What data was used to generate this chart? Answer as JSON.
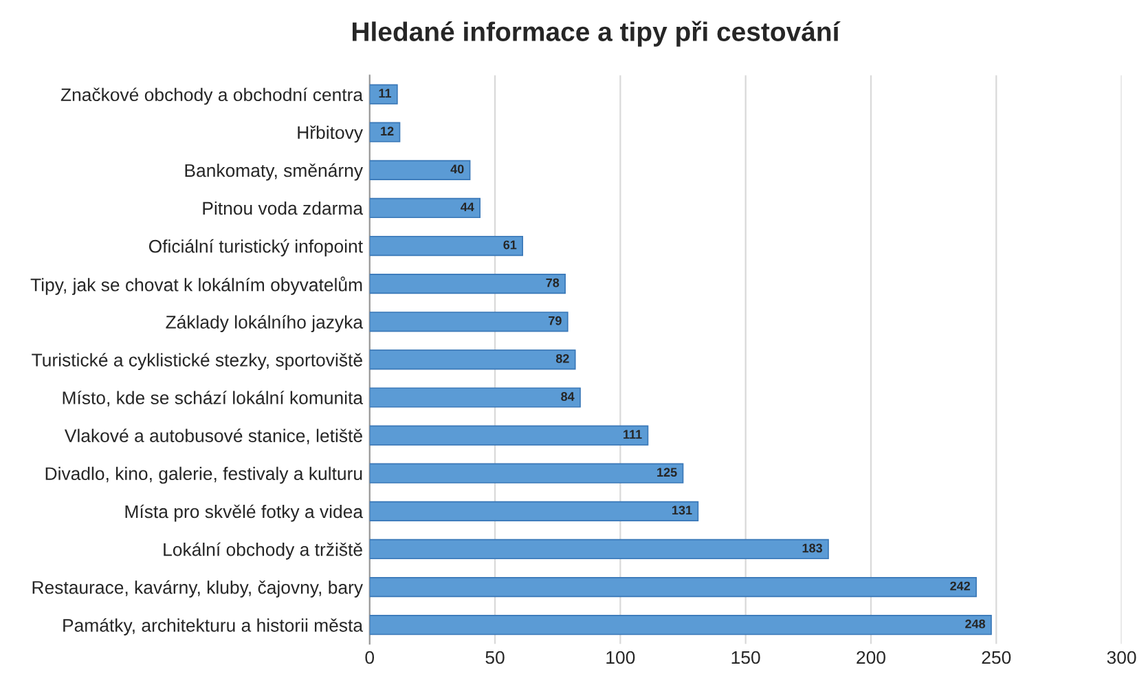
{
  "chart_data": {
    "type": "bar",
    "orientation": "horizontal",
    "title": "Hledané informace a tipy při cestování",
    "categories": [
      "Značkové obchody a obchodní centra",
      "Hřbitovy",
      "Bankomaty, směnárny",
      "Pitnou voda zdarma",
      "Oficiální turistický infopoint",
      "Tipy, jak se chovat k lokálním obyvatelům",
      "Základy lokálního jazyka",
      "Turistické a cyklistické stezky, sportoviště",
      "Místo, kde se schází lokální komunita",
      "Vlakové a autobusové stanice, letiště",
      "Divadlo, kino, galerie, festivaly a kulturu",
      "Místa pro skvělé fotky a videa",
      "Lokální obchody a tržiště",
      "Restaurace, kavárny, kluby, čajovny, bary",
      "Památky, architekturu a historii města"
    ],
    "values": [
      11,
      12,
      40,
      44,
      61,
      78,
      79,
      82,
      84,
      111,
      125,
      131,
      183,
      242,
      248
    ],
    "color": "#5b9bd5",
    "data_labels": true,
    "xlim": [
      0,
      300
    ],
    "xticks": [
      0,
      50,
      100,
      150,
      200,
      250,
      300
    ],
    "grid": "x",
    "legend": false
  }
}
